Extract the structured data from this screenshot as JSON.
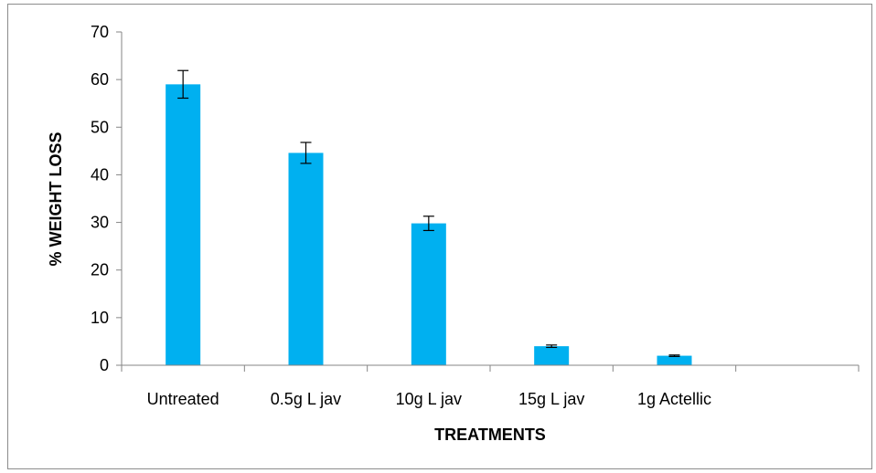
{
  "chart_data": {
    "type": "bar",
    "categories": [
      "Untreated",
      "0.5g L jav",
      "10g L jav",
      "15g L jav",
      "1g Actellic",
      ""
    ],
    "values": [
      59,
      44.6,
      29.8,
      4.0,
      2.0,
      null
    ],
    "errors": [
      2.9,
      2.2,
      1.5,
      0.25,
      0.15,
      null
    ],
    "xlabel": "TREATMENTS",
    "ylabel": "% WEIGHT LOSS",
    "ylim": [
      0,
      70
    ],
    "yticks": [
      0,
      10,
      20,
      30,
      40,
      50,
      60,
      70
    ],
    "bar_color": "#00b0f0",
    "error_bar_color": "#000000",
    "grid": false,
    "legend": "none"
  }
}
